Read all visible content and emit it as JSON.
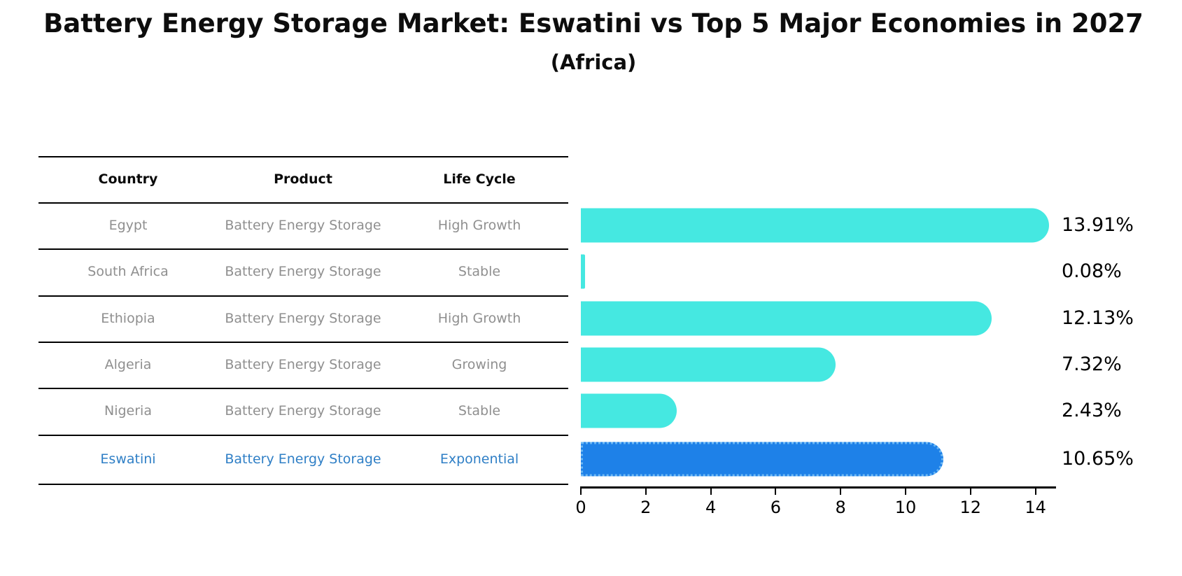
{
  "title": {
    "text": "Battery Energy Storage Market: Eswatini vs Top 5 Major Economies in 2027",
    "subtitle": "(Africa)"
  },
  "table": {
    "headers": [
      "Country",
      "Product",
      "Life Cycle"
    ],
    "rows": [
      {
        "country": "Egypt",
        "product": "Battery Energy Storage",
        "life_cycle": "High Growth",
        "highlight": false
      },
      {
        "country": "South Africa",
        "product": "Battery Energy Storage",
        "life_cycle": "Stable",
        "highlight": false
      },
      {
        "country": "Ethiopia",
        "product": "Battery Energy Storage",
        "life_cycle": "High Growth",
        "highlight": false
      },
      {
        "country": "Algeria",
        "product": "Battery Energy Storage",
        "life_cycle": "Growing",
        "highlight": false
      },
      {
        "country": "Nigeria",
        "product": "Battery Energy Storage",
        "life_cycle": "Stable",
        "highlight": false
      },
      {
        "country": "Eswatini",
        "product": "Battery Energy Storage",
        "life_cycle": "Exponential",
        "highlight": true
      }
    ]
  },
  "chart_data": {
    "type": "bar",
    "orientation": "horizontal",
    "title": "Battery Energy Storage Market: Eswatini vs Top 5 Major Economies in 2027 (Africa)",
    "categories": [
      "Egypt",
      "South Africa",
      "Ethiopia",
      "Algeria",
      "Nigeria",
      "Eswatini"
    ],
    "values": [
      13.91,
      0.08,
      12.13,
      7.32,
      2.43,
      10.65
    ],
    "value_labels": [
      "13.91%",
      "0.08%",
      "12.13%",
      "7.32%",
      "2.43%",
      "10.65%"
    ],
    "xlabel": "",
    "ylabel": "",
    "xlim": [
      0,
      14.6
    ],
    "xticks": [
      0,
      2,
      4,
      6,
      8,
      10,
      12,
      14
    ],
    "grid": false,
    "legend": false,
    "bar_color": "#45E8E1",
    "highlight_index": 5,
    "highlight_color": "#1E81E8",
    "highlight_border_color": "#6CB8F4",
    "highlight_text_color": "#2F7FC6",
    "table_header_color": "#0A0A0A",
    "table_cell_color": "#8F8F8F"
  }
}
